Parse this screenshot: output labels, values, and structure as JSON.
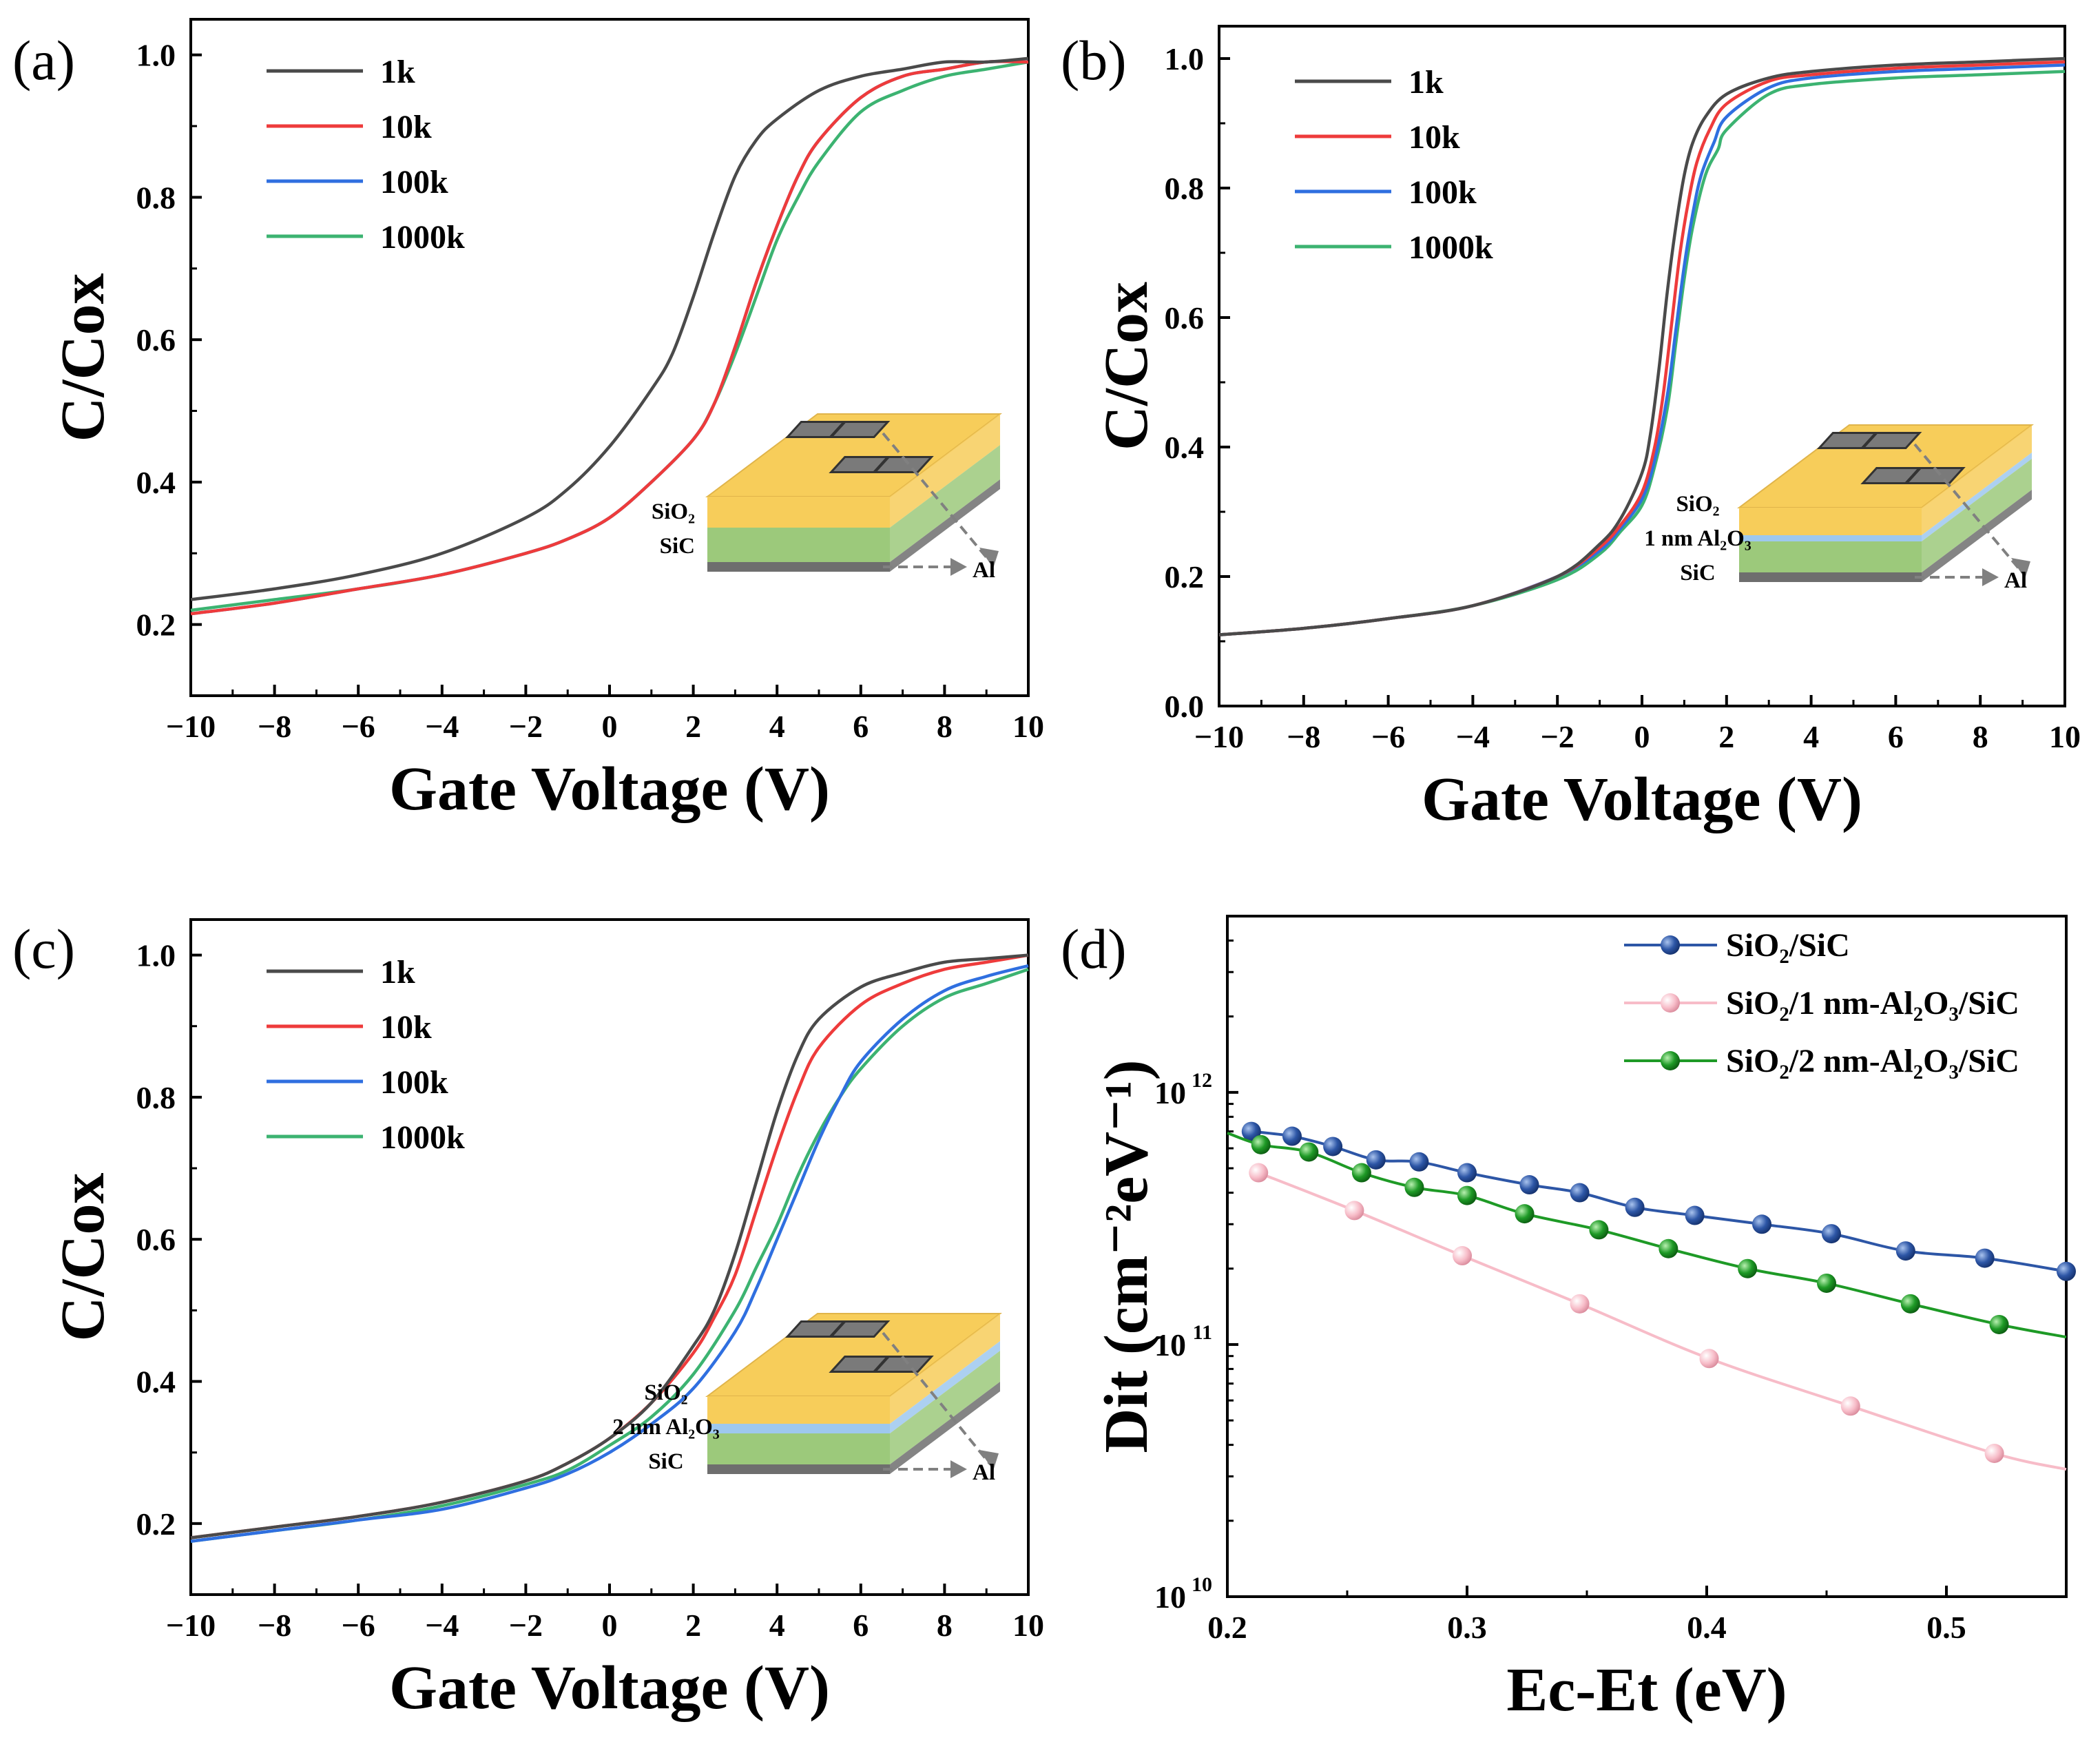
{
  "colors": {
    "s1k": "#4a4a4a",
    "s10k": "#ee3b3b",
    "s100k": "#2f6fe0",
    "s1000k": "#3cb371",
    "d_sic": "#2d56a6",
    "d_1nm": "#f7bcc8",
    "d_2nm": "#1e9a26",
    "sio2_layer": "#f7cd5a",
    "sic_layer": "#9cc97b",
    "al2o3_layer": "#9ec8ee",
    "al_layer": "#6e6e6e",
    "pad": "#7a7a7a"
  },
  "inset_labels": {
    "sio2": "SiO₂",
    "sic": "SiC",
    "al": "Al",
    "al2o3_1nm": "1 nm Al₂O₃",
    "al2o3_2nm": "2 nm Al₂O₃"
  },
  "chart_data": [
    {
      "panel": "(a)",
      "type": "line",
      "xlabel": "Gate Voltage (V)",
      "ylabel": "C/Cox",
      "xlim": [
        -10,
        10
      ],
      "ylim": [
        0.1,
        1.05
      ],
      "xticks": [
        -10,
        -8,
        -6,
        -4,
        -2,
        0,
        2,
        4,
        6,
        8,
        10
      ],
      "xtick_labels": [
        "−10",
        "−8",
        "−6",
        "−4",
        "−2",
        "0",
        "2",
        "4",
        "6",
        "8",
        "10"
      ],
      "yticks": [
        0.2,
        0.4,
        0.6,
        0.8,
        1.0
      ],
      "ytick_labels": [
        "0.2",
        "0.4",
        "0.6",
        "0.8",
        "1.0"
      ],
      "legend_position": "top-left",
      "inset": "SiO2/SiC",
      "series": [
        {
          "name": "1k",
          "color_key": "s1k",
          "x": [
            -10,
            -8,
            -6,
            -4,
            -2,
            -1,
            0,
            1,
            1.5,
            2,
            2.5,
            3,
            3.5,
            4,
            5,
            6,
            7,
            8,
            9,
            10
          ],
          "y": [
            0.235,
            0.25,
            0.27,
            0.3,
            0.35,
            0.39,
            0.45,
            0.53,
            0.58,
            0.66,
            0.75,
            0.83,
            0.88,
            0.91,
            0.95,
            0.97,
            0.98,
            0.99,
            0.99,
            0.995
          ]
        },
        {
          "name": "10k",
          "color_key": "s10k",
          "x": [
            -10,
            -8,
            -6,
            -4,
            -2,
            -1,
            0,
            1,
            2,
            2.5,
            3,
            3.5,
            4,
            4.5,
            5,
            6,
            7,
            8,
            9,
            10
          ],
          "y": [
            0.215,
            0.23,
            0.25,
            0.27,
            0.3,
            0.32,
            0.35,
            0.4,
            0.46,
            0.51,
            0.59,
            0.68,
            0.76,
            0.83,
            0.88,
            0.94,
            0.97,
            0.98,
            0.99,
            0.99
          ]
        },
        {
          "name": "100k",
          "color_key": "s100k",
          "x": [
            -10,
            -8,
            -6,
            -4,
            -2,
            -1,
            0,
            1,
            2,
            2.5,
            3,
            3.5,
            4,
            4.5,
            5,
            6,
            7,
            8,
            9,
            10
          ],
          "y": [
            0.215,
            0.23,
            0.25,
            0.27,
            0.3,
            0.32,
            0.35,
            0.4,
            0.46,
            0.51,
            0.59,
            0.68,
            0.76,
            0.83,
            0.88,
            0.94,
            0.97,
            0.98,
            0.99,
            0.99
          ]
        },
        {
          "name": "1000k",
          "color_key": "s1000k",
          "x": [
            -10,
            -8,
            -6,
            -4,
            -2,
            -1,
            0,
            1,
            2,
            2.5,
            3,
            3.5,
            4,
            4.5,
            5,
            6,
            7,
            8,
            9,
            10
          ],
          "y": [
            0.22,
            0.235,
            0.25,
            0.27,
            0.3,
            0.32,
            0.35,
            0.4,
            0.46,
            0.51,
            0.58,
            0.66,
            0.74,
            0.8,
            0.85,
            0.92,
            0.95,
            0.97,
            0.98,
            0.99
          ]
        }
      ]
    },
    {
      "panel": "(b)",
      "type": "line",
      "xlabel": "Gate Voltage (V)",
      "ylabel": "C/Cox",
      "xlim": [
        -10,
        10
      ],
      "ylim": [
        0.0,
        1.05
      ],
      "xticks": [
        -10,
        -8,
        -6,
        -4,
        -2,
        0,
        2,
        4,
        6,
        8,
        10
      ],
      "xtick_labels": [
        "−10",
        "−8",
        "−6",
        "−4",
        "−2",
        "0",
        "2",
        "4",
        "6",
        "8",
        "10"
      ],
      "yticks": [
        0.0,
        0.2,
        0.4,
        0.6,
        0.8,
        1.0
      ],
      "ytick_labels": [
        "0.0",
        "0.2",
        "0.4",
        "0.6",
        "0.8",
        "1.0"
      ],
      "legend_position": "top-left",
      "inset": "SiO2/1 nm Al2O3/SiC",
      "series": [
        {
          "name": "1k",
          "color_key": "s1k",
          "x": [
            -10,
            -8,
            -6,
            -4,
            -2,
            -1,
            -0.5,
            0,
            0.2,
            0.4,
            0.6,
            0.8,
            1,
            1.2,
            1.5,
            2,
            3,
            4,
            6,
            8,
            10
          ],
          "y": [
            0.11,
            0.12,
            0.135,
            0.155,
            0.2,
            0.25,
            0.29,
            0.36,
            0.42,
            0.52,
            0.64,
            0.74,
            0.82,
            0.87,
            0.91,
            0.945,
            0.97,
            0.98,
            0.99,
            0.995,
            1.0
          ]
        },
        {
          "name": "10k",
          "color_key": "s10k",
          "x": [
            -10,
            -8,
            -6,
            -4,
            -2,
            -1,
            -0.5,
            0,
            0.3,
            0.5,
            0.7,
            0.9,
            1.1,
            1.3,
            1.6,
            2,
            3,
            4,
            6,
            8,
            10
          ],
          "y": [
            0.11,
            0.12,
            0.135,
            0.155,
            0.2,
            0.245,
            0.28,
            0.33,
            0.4,
            0.48,
            0.59,
            0.7,
            0.78,
            0.84,
            0.89,
            0.93,
            0.965,
            0.975,
            0.985,
            0.99,
            0.995
          ]
        },
        {
          "name": "100k",
          "color_key": "s100k",
          "x": [
            -10,
            -8,
            -6,
            -4,
            -2,
            -1,
            -0.5,
            0,
            0.3,
            0.6,
            0.8,
            1,
            1.2,
            1.4,
            1.7,
            2,
            3,
            4,
            6,
            8,
            10
          ],
          "y": [
            0.11,
            0.12,
            0.135,
            0.155,
            0.2,
            0.24,
            0.275,
            0.32,
            0.38,
            0.48,
            0.58,
            0.68,
            0.76,
            0.82,
            0.87,
            0.91,
            0.955,
            0.97,
            0.98,
            0.985,
            0.99
          ]
        },
        {
          "name": "1000k",
          "color_key": "s1000k",
          "x": [
            -10,
            -8,
            -6,
            -4,
            -2,
            -1,
            -0.5,
            0,
            0.3,
            0.6,
            0.8,
            1,
            1.2,
            1.5,
            1.8,
            2,
            3,
            4,
            6,
            8,
            10
          ],
          "y": [
            0.11,
            0.12,
            0.135,
            0.155,
            0.195,
            0.235,
            0.27,
            0.31,
            0.37,
            0.46,
            0.56,
            0.66,
            0.74,
            0.82,
            0.86,
            0.89,
            0.945,
            0.96,
            0.97,
            0.975,
            0.98
          ]
        }
      ]
    },
    {
      "panel": "(c)",
      "type": "line",
      "xlabel": "Gate Voltage (V)",
      "ylabel": "C/Cox",
      "xlim": [
        -10,
        10
      ],
      "ylim": [
        0.1,
        1.05
      ],
      "xticks": [
        -10,
        -8,
        -6,
        -4,
        -2,
        0,
        2,
        4,
        6,
        8,
        10
      ],
      "xtick_labels": [
        "−10",
        "−8",
        "−6",
        "−4",
        "−2",
        "0",
        "2",
        "4",
        "6",
        "8",
        "10"
      ],
      "yticks": [
        0.2,
        0.4,
        0.6,
        0.8,
        1.0
      ],
      "ytick_labels": [
        "0.2",
        "0.4",
        "0.6",
        "0.8",
        "1.0"
      ],
      "legend_position": "top-left",
      "inset": "SiO2/2 nm Al2O3/SiC",
      "series": [
        {
          "name": "1k",
          "color_key": "s1k",
          "x": [
            -10,
            -8,
            -6,
            -4,
            -2,
            -1,
            0,
            1,
            2,
            2.5,
            3,
            3.5,
            4,
            4.5,
            5,
            6,
            7,
            8,
            9,
            10
          ],
          "y": [
            0.18,
            0.195,
            0.21,
            0.23,
            0.26,
            0.285,
            0.32,
            0.37,
            0.45,
            0.5,
            0.58,
            0.68,
            0.78,
            0.86,
            0.91,
            0.955,
            0.975,
            0.99,
            0.995,
            1.0
          ]
        },
        {
          "name": "10k",
          "color_key": "s10k",
          "x": [
            -10,
            -8,
            -6,
            -4,
            -2,
            -1,
            0,
            1,
            2,
            2.5,
            3,
            3.5,
            4,
            4.5,
            5,
            6,
            7,
            8,
            9,
            10
          ],
          "y": [
            0.18,
            0.195,
            0.21,
            0.23,
            0.26,
            0.285,
            0.32,
            0.37,
            0.44,
            0.49,
            0.55,
            0.64,
            0.73,
            0.81,
            0.87,
            0.93,
            0.96,
            0.98,
            0.99,
            1.0
          ]
        },
        {
          "name": "100k",
          "color_key": "s100k",
          "x": [
            -10,
            -8,
            -6,
            -4,
            -2,
            -1,
            0,
            1,
            2,
            3,
            3.5,
            4,
            4.5,
            5,
            5.5,
            6,
            7,
            8,
            9,
            10
          ],
          "y": [
            0.175,
            0.19,
            0.205,
            0.22,
            0.25,
            0.27,
            0.3,
            0.34,
            0.39,
            0.47,
            0.53,
            0.6,
            0.67,
            0.74,
            0.8,
            0.85,
            0.91,
            0.95,
            0.97,
            0.985
          ]
        },
        {
          "name": "1000k",
          "color_key": "s1000k",
          "x": [
            -10,
            -8,
            -6,
            -4,
            -2,
            -1,
            0,
            1,
            2,
            3,
            3.5,
            4,
            4.5,
            5,
            5.5,
            6,
            7,
            8,
            9,
            10
          ],
          "y": [
            0.175,
            0.19,
            0.205,
            0.225,
            0.255,
            0.275,
            0.31,
            0.35,
            0.41,
            0.5,
            0.56,
            0.62,
            0.69,
            0.75,
            0.8,
            0.84,
            0.9,
            0.94,
            0.96,
            0.98
          ]
        }
      ]
    },
    {
      "panel": "(d)",
      "type": "line",
      "scale_y": "log",
      "xlabel": "Ec-Et (eV)",
      "ylabel": "Dit (cm⁻²eV⁻¹)",
      "xlim": [
        0.2,
        0.55
      ],
      "ylim": [
        10000000000.0,
        5000000000000.0
      ],
      "xticks": [
        0.2,
        0.3,
        0.4,
        0.5
      ],
      "xtick_labels": [
        "0.2",
        "0.3",
        "0.4",
        "0.5"
      ],
      "yticks": [
        10000000000.0,
        100000000000.0,
        1000000000000.0
      ],
      "ytick_bases": [
        "10",
        "10",
        "10"
      ],
      "ytick_exponents": [
        "10",
        "11",
        "12"
      ],
      "legend_position": "top-right",
      "series": [
        {
          "name": "SiO₂/SiC",
          "color_key": "d_sic",
          "line_x": [
            0.2,
            0.55
          ],
          "x": [
            0.21,
            0.227,
            0.244,
            0.262,
            0.28,
            0.3,
            0.326,
            0.347,
            0.37,
            0.395,
            0.423,
            0.452,
            0.483,
            0.516,
            0.55
          ],
          "y": [
            700000000000.0,
            670000000000.0,
            610000000000.0,
            540000000000.0,
            530000000000.0,
            480000000000.0,
            430000000000.0,
            400000000000.0,
            350000000000.0,
            325000000000.0,
            300000000000.0,
            275000000000.0,
            235000000000.0,
            220000000000.0,
            195000000000.0
          ]
        },
        {
          "name": "SiO₂/1 nm-Al₂O₃/SiC",
          "color_key": "d_1nm",
          "line_x": [
            0.213,
            0.55
          ],
          "x": [
            0.213,
            0.253,
            0.298,
            0.347,
            0.401,
            0.46,
            0.52
          ],
          "y": [
            480000000000.0,
            340000000000.0,
            225000000000.0,
            145000000000.0,
            88000000000.0,
            57000000000.0,
            37000000000.0
          ],
          "end": [
            0.55,
            32000000000.0
          ]
        },
        {
          "name": "SiO₂/2 nm-Al₂O₃/SiC",
          "color_key": "d_2nm",
          "line_x": [
            0.2,
            0.55
          ],
          "x": [
            0.214,
            0.234,
            0.256,
            0.278,
            0.3,
            0.324,
            0.355,
            0.384,
            0.417,
            0.45,
            0.485,
            0.522
          ],
          "y": [
            620000000000.0,
            580000000000.0,
            480000000000.0,
            420000000000.0,
            390000000000.0,
            330000000000.0,
            285000000000.0,
            240000000000.0,
            200000000000.0,
            175000000000.0,
            145000000000.0,
            120000000000.0
          ],
          "start": [
            0.2,
            690000000000.0
          ],
          "end": [
            0.55,
            107000000000.0
          ]
        }
      ]
    }
  ]
}
